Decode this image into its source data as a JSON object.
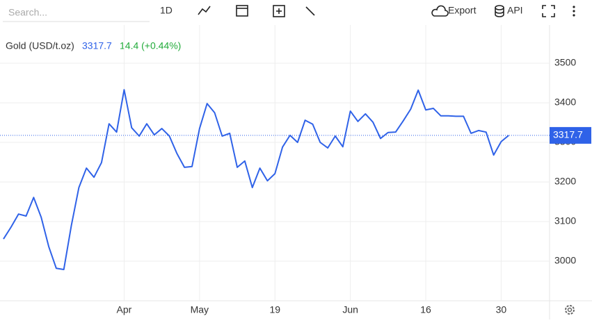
{
  "toolbar": {
    "search_placeholder": "Search...",
    "interval": "1D",
    "export": "Export",
    "api": "API"
  },
  "chart_data": {
    "type": "line",
    "title": "Gold (USD/t.oz)",
    "change": "14.4 (+0.44%)",
    "categories": [
      null,
      null,
      null,
      null,
      null,
      null,
      null,
      null,
      null,
      null,
      null,
      null,
      null,
      null,
      null,
      null,
      "Apr",
      null,
      null,
      null,
      null,
      null,
      null,
      null,
      null,
      null,
      "May",
      null,
      null,
      null,
      null,
      null,
      null,
      null,
      null,
      null,
      "19",
      null,
      null,
      null,
      null,
      null,
      null,
      null,
      null,
      null,
      "Jun",
      null,
      null,
      null,
      null,
      null,
      null,
      null,
      null,
      null,
      "16",
      null,
      null,
      null,
      null,
      null,
      null,
      null,
      null,
      null,
      "30",
      null
    ],
    "series": [
      {
        "name": "Gold (USD/t.oz)",
        "color": "#2f62e8",
        "values": [
          3056,
          3086,
          3119,
          3114,
          3161,
          3111,
          3037,
          2982,
          2979,
          3090,
          3186,
          3235,
          3212,
          3249,
          3347,
          3326,
          3433,
          3337,
          3316,
          3347,
          3319,
          3335,
          3316,
          3272,
          3237,
          3239,
          3335,
          3398,
          3375,
          3316,
          3323,
          3237,
          3253,
          3186,
          3235,
          3203,
          3221,
          3288,
          3318,
          3300,
          3356,
          3346,
          3300,
          3286,
          3316,
          3289,
          3379,
          3353,
          3372,
          3351,
          3310,
          3325,
          3326,
          3354,
          3384,
          3432,
          3382,
          3386,
          3367,
          3367,
          3366,
          3366,
          3323,
          3330,
          3326,
          3268,
          3302,
          3317.7
        ]
      }
    ],
    "ylim": [
      2900,
      3600
    ],
    "yticks": [
      3000,
      3100,
      3200,
      3300,
      3400,
      3500
    ],
    "grid": true
  }
}
